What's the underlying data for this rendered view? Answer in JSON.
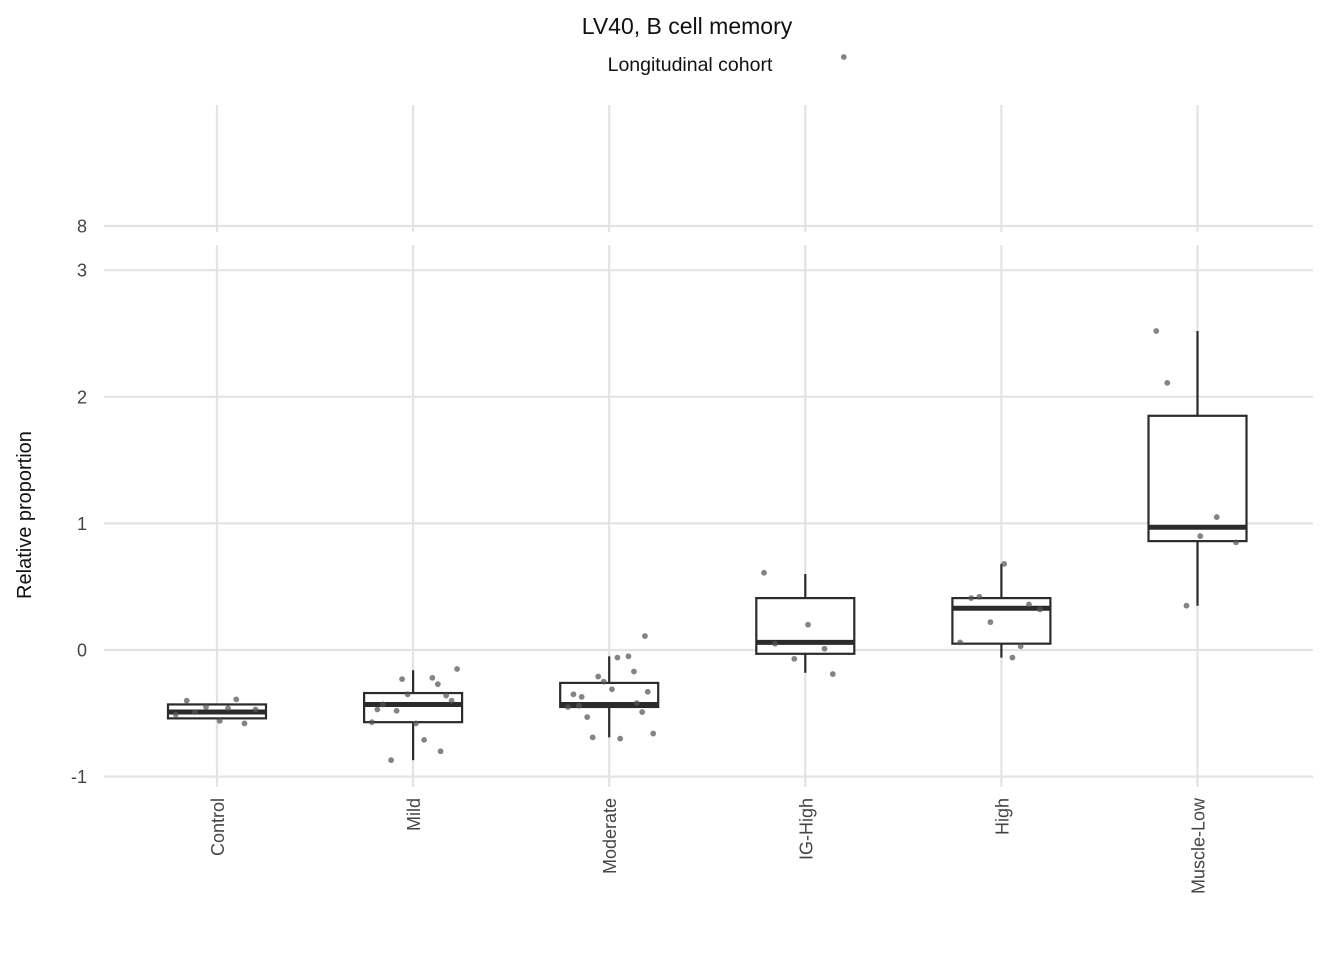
{
  "chart_data": {
    "type": "box",
    "title": "LV40, B cell memory",
    "subtitle": "Longitudinal cohort",
    "xlabel": "",
    "ylabel": "Relative proportion",
    "ylim": [
      -1.0,
      3.0
    ],
    "y_break": {
      "upper_ticks": [
        "8"
      ],
      "upper_max_value": 9.0
    },
    "y_ticks": [
      "-1",
      "0",
      "1",
      "2",
      "3"
    ],
    "grid": true,
    "categories": [
      "Control",
      "Mild",
      "Moderate",
      "IG-High",
      "High",
      "Muscle-Low"
    ],
    "boxes": [
      {
        "category": "Control",
        "whisker_low": -0.54,
        "q1": -0.54,
        "median": -0.49,
        "q3": -0.43,
        "whisker_high": -0.43
      },
      {
        "category": "Mild",
        "whisker_low": -0.87,
        "q1": -0.57,
        "median": -0.43,
        "q3": -0.34,
        "whisker_high": -0.16
      },
      {
        "category": "Moderate",
        "whisker_low": -0.69,
        "q1": -0.45,
        "median": -0.43,
        "q3": -0.26,
        "whisker_high": -0.05
      },
      {
        "category": "IG-High",
        "whisker_low": -0.18,
        "q1": -0.03,
        "median": 0.06,
        "q3": 0.41,
        "whisker_high": 0.6
      },
      {
        "category": "High",
        "whisker_low": -0.06,
        "q1": 0.05,
        "median": 0.33,
        "q3": 0.41,
        "whisker_high": 0.68
      },
      {
        "category": "Muscle-Low",
        "whisker_low": 0.35,
        "q1": 0.86,
        "median": 0.97,
        "q3": 1.85,
        "whisker_high": 2.52
      }
    ],
    "points": [
      {
        "category": "Control",
        "values": [
          -0.4,
          -0.39,
          -0.45,
          -0.47,
          -0.51,
          -0.56,
          -0.58,
          -0.49,
          -0.46
        ]
      },
      {
        "category": "Mild",
        "values": [
          -0.43,
          -0.22,
          -0.23,
          -0.4,
          -0.57,
          -0.58,
          -0.8,
          -0.87,
          -0.71,
          -0.47,
          -0.36,
          -0.35,
          -0.27,
          -0.48,
          -0.15
        ]
      },
      {
        "category": "Moderate",
        "values": [
          -0.44,
          -0.05,
          -0.21,
          -0.33,
          -0.45,
          -0.31,
          -0.42,
          -0.53,
          -0.7,
          -0.35,
          -0.49,
          -0.25,
          -0.17,
          -0.69,
          -0.66,
          -0.37,
          -0.06,
          0.11
        ]
      },
      {
        "category": "IG-High",
        "values": [
          0.05,
          0.01,
          -0.07,
          9.3,
          0.61,
          0.2,
          -0.19
        ]
      },
      {
        "category": "High",
        "values": [
          0.41,
          0.03,
          0.22,
          0.32,
          0.06,
          0.68,
          0.36,
          0.42,
          -0.06
        ]
      },
      {
        "category": "Muscle-Low",
        "values": [
          2.11,
          1.05,
          0.35,
          0.85,
          2.52,
          0.9
        ]
      }
    ]
  }
}
